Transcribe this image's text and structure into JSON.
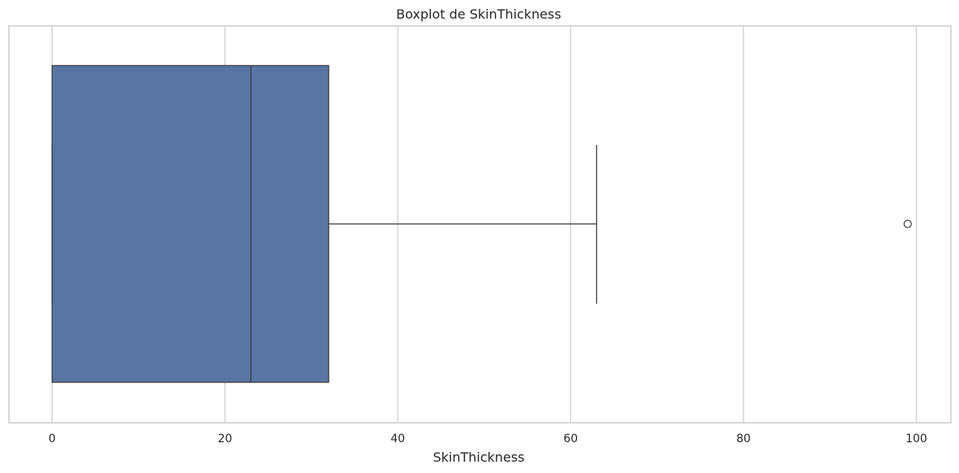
{
  "chart_data": {
    "type": "boxplot",
    "orientation": "horizontal",
    "title": "Boxplot de SkinThickness",
    "xlabel": "SkinThickness",
    "ylabel": "",
    "xlim": [
      -5,
      104
    ],
    "x_ticks": [
      0,
      20,
      40,
      60,
      80,
      100
    ],
    "x_tick_labels": [
      "0",
      "20",
      "40",
      "60",
      "80",
      "100"
    ],
    "grid": true,
    "box": {
      "whisker_low": 0,
      "q1": 0,
      "median": 23,
      "q3": 32,
      "whisker_high": 63,
      "outliers": [
        99
      ]
    },
    "colors": {
      "box_fill": "#5975a4",
      "line": "#3d3d3d",
      "grid": "#cccccc",
      "frame": "#cccccc"
    }
  }
}
